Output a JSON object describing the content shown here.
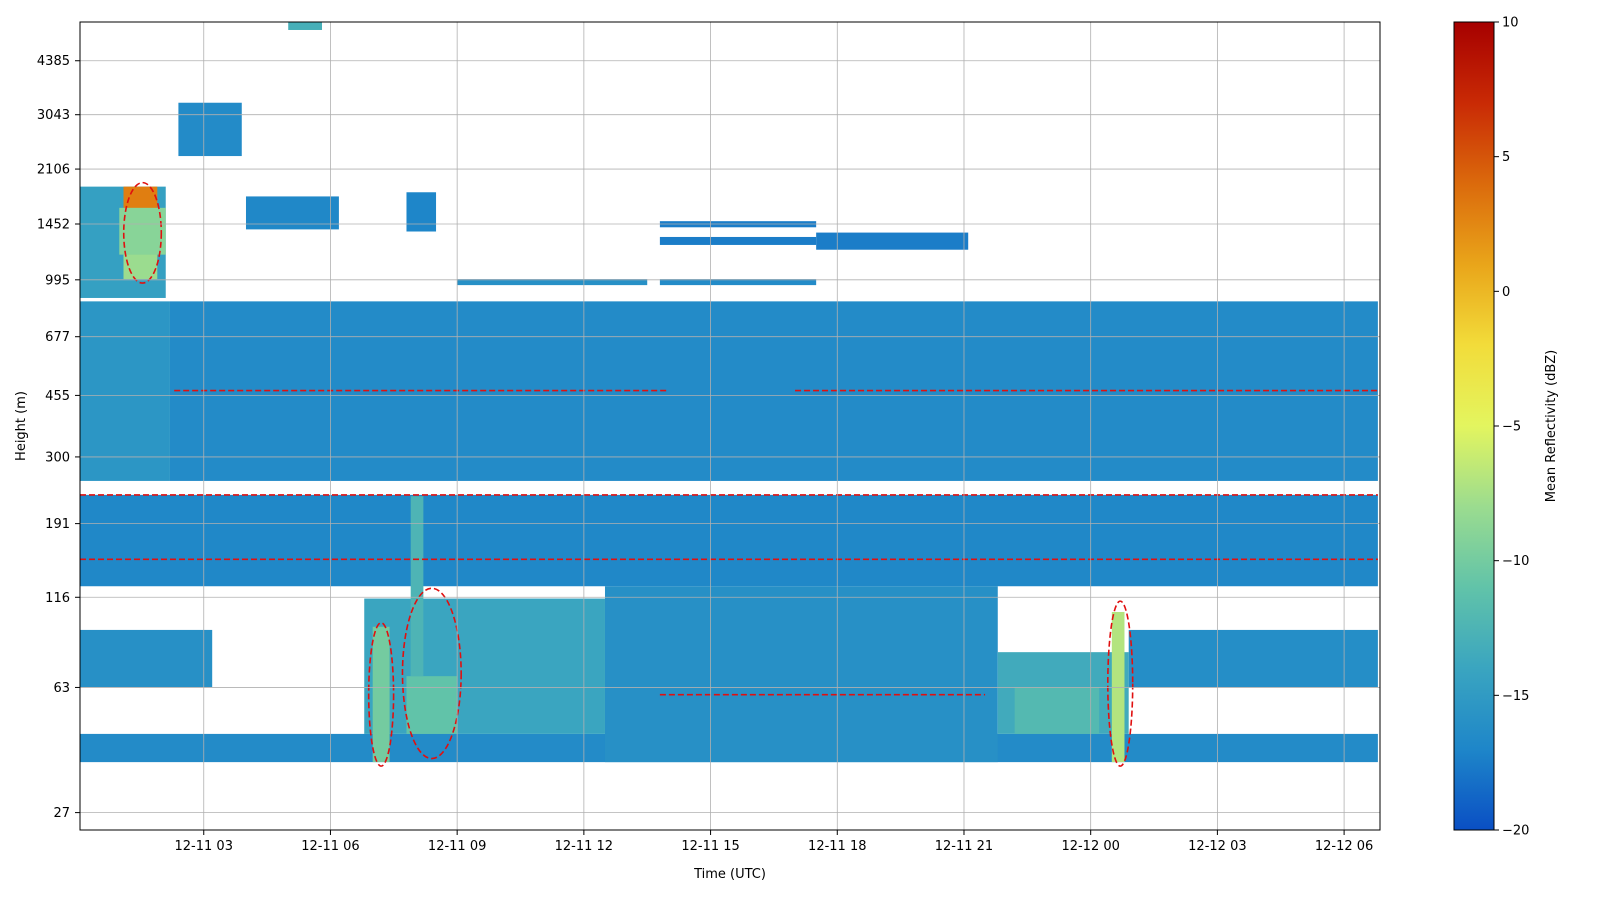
{
  "chart_data": {
    "type": "heatmap",
    "title": "",
    "xlabel": "Time (UTC)",
    "ylabel": "Height (m)",
    "x_ticks": [
      "12-11 03",
      "12-11 06",
      "12-11 09",
      "12-11 12",
      "12-11 15",
      "12-11 18",
      "12-11 21",
      "12-12 00",
      "12-12 03",
      "12-12 06"
    ],
    "x_tick_hours": [
      3,
      6,
      9,
      12,
      15,
      18,
      21,
      24,
      27,
      30
    ],
    "xlim_hours": [
      0.07,
      30.85
    ],
    "y_ticks": [
      "27",
      "63",
      "116",
      "191",
      "300",
      "455",
      "677",
      "995",
      "1452",
      "2106",
      "3043",
      "4385"
    ],
    "y_tick_values": [
      27,
      63,
      116,
      191,
      300,
      455,
      677,
      995,
      1452,
      2106,
      3043,
      4385
    ],
    "ylim_m": [
      24,
      5700
    ],
    "y_scale": "log",
    "grid": true,
    "colorbar": {
      "label": "Mean Reflectivity (dBZ)",
      "ticks": [
        "10",
        "5",
        "0",
        "−5",
        "−10",
        "−15",
        "−20"
      ],
      "tick_values": [
        10,
        5,
        0,
        -5,
        -10,
        -15,
        -20
      ],
      "range": [
        -20,
        10
      ],
      "colormap": [
        "#0a4fc4",
        "#1e86c9",
        "#3aa5c0",
        "#61c3a9",
        "#9bdc8f",
        "#e3f55f",
        "#f2dc3a",
        "#e9a51a",
        "#db6a0c",
        "#c92a05",
        "#a60000"
      ]
    },
    "bands": [
      {
        "t0": 2.2,
        "t1": 30.8,
        "h0": 255,
        "h1": 860,
        "dbz": -16.5
      },
      {
        "t0": 0.07,
        "t1": 2.2,
        "h0": 255,
        "h1": 860,
        "dbz": -15.5
      },
      {
        "t0": 0.07,
        "t1": 30.8,
        "h0": 125,
        "h1": 232,
        "dbz": -16.8
      },
      {
        "t0": 0.07,
        "t1": 30.8,
        "h0": 38,
        "h1": 46,
        "dbz": -16.5
      },
      {
        "t0": 12.5,
        "t1": 21.8,
        "h0": 38,
        "h1": 125,
        "dbz": -16.0
      },
      {
        "t0": 0.07,
        "t1": 3.2,
        "h0": 63,
        "h1": 93,
        "dbz": -16.0
      },
      {
        "t0": 6.8,
        "t1": 12.5,
        "h0": 46,
        "h1": 115,
        "dbz": -14.0
      },
      {
        "t0": 21.8,
        "t1": 24.9,
        "h0": 46,
        "h1": 80,
        "dbz": -13.5
      },
      {
        "t0": 24.9,
        "t1": 30.8,
        "h0": 63,
        "h1": 93,
        "dbz": -16.2
      },
      {
        "t0": 0.07,
        "t1": 2.1,
        "h0": 880,
        "h1": 1870,
        "dbz": -14.5
      },
      {
        "t0": 1.1,
        "t1": 1.9,
        "h0": 1150,
        "h1": 1870,
        "dbz": 3.0
      },
      {
        "t0": 1.1,
        "t1": 1.9,
        "h0": 1000,
        "h1": 1400,
        "dbz": -8.0
      },
      {
        "t0": 1.0,
        "t1": 2.1,
        "h0": 1180,
        "h1": 1620,
        "dbz": -9.0
      },
      {
        "t0": 2.4,
        "t1": 3.9,
        "h0": 2300,
        "h1": 3300,
        "dbz": -16.5
      },
      {
        "t0": 4.0,
        "t1": 6.2,
        "h0": 1400,
        "h1": 1750,
        "dbz": -16.8
      },
      {
        "t0": 7.8,
        "t1": 8.5,
        "h0": 1380,
        "h1": 1800,
        "dbz": -17.0
      },
      {
        "t0": 5.0,
        "t1": 5.8,
        "h0": 5400,
        "h1": 5700,
        "dbz": -13.0
      },
      {
        "t0": 13.8,
        "t1": 17.5,
        "h0": 1420,
        "h1": 1480,
        "dbz": -17.5
      },
      {
        "t0": 13.8,
        "t1": 17.5,
        "h0": 1260,
        "h1": 1330,
        "dbz": -17.5
      },
      {
        "t0": 17.5,
        "t1": 21.1,
        "h0": 1220,
        "h1": 1370,
        "dbz": -17.5
      },
      {
        "t0": 13.8,
        "t1": 17.5,
        "h0": 960,
        "h1": 1000,
        "dbz": -16.5
      },
      {
        "t0": 9.0,
        "t1": 13.5,
        "h0": 960,
        "h1": 1000,
        "dbz": -16.0
      },
      {
        "t0": 7.0,
        "t1": 7.4,
        "h0": 38,
        "h1": 95,
        "dbz": -10.0
      },
      {
        "t0": 7.8,
        "t1": 9.0,
        "h0": 46,
        "h1": 68,
        "dbz": -11.0
      },
      {
        "t0": 7.9,
        "t1": 8.2,
        "h0": 68,
        "h1": 230,
        "dbz": -12.5
      },
      {
        "t0": 24.5,
        "t1": 24.8,
        "h0": 38,
        "h1": 105,
        "dbz": -7.0
      },
      {
        "t0": 22.2,
        "t1": 24.2,
        "h0": 46,
        "h1": 63,
        "dbz": -12.0
      }
    ]
  }
}
